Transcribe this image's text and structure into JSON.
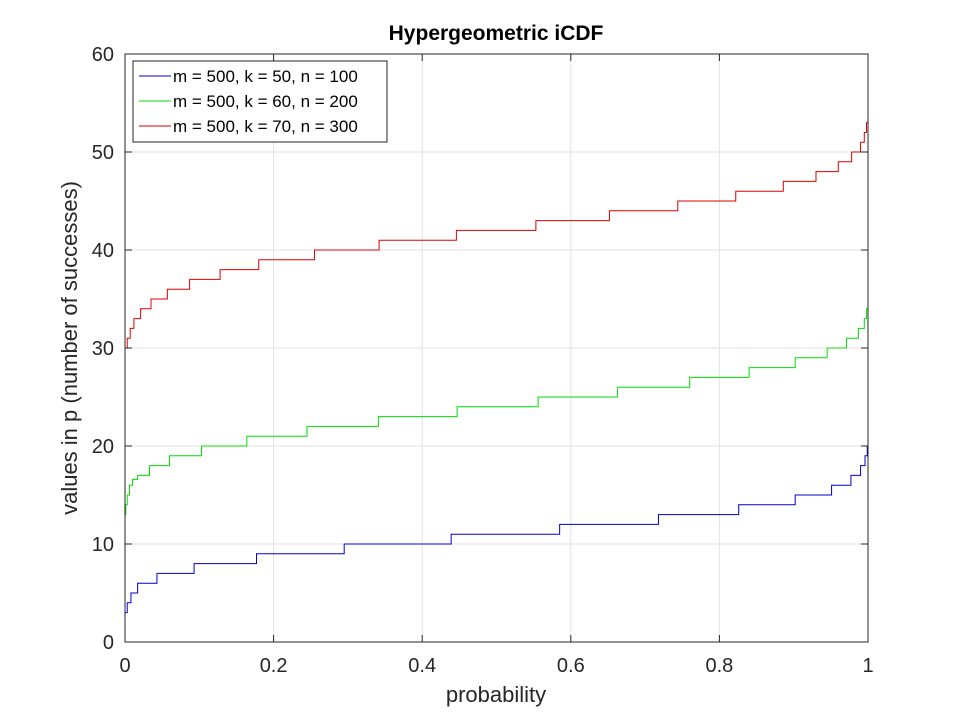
{
  "chart_data": {
    "type": "line",
    "title": "Hypergeometric iCDF",
    "xlabel": "probability",
    "ylabel": "values in p (number of successes)",
    "xlim": [
      0,
      1
    ],
    "ylim": [
      0,
      60
    ],
    "xticks": [
      0,
      0.2,
      0.4,
      0.6,
      0.8,
      1
    ],
    "xtick_labels": [
      "0",
      "0.2",
      "0.4",
      "0.6",
      "0.8",
      "1"
    ],
    "yticks": [
      0,
      10,
      20,
      30,
      40,
      50,
      60
    ],
    "ytick_labels": [
      "0",
      "10",
      "20",
      "30",
      "40",
      "50",
      "60"
    ],
    "grid": true,
    "legend_position": "top-left",
    "step": true,
    "series": [
      {
        "name": "m = 500, k = 50, n = 100",
        "color": "#0000cc",
        "x": [
          0,
          0.003,
          0.008,
          0.017,
          0.043,
          0.093,
          0.177,
          0.295,
          0.439,
          0.585,
          0.718,
          0.826,
          0.902,
          0.951,
          0.977,
          0.99,
          0.996,
          0.999,
          1.0
        ],
        "y": [
          3,
          4,
          5,
          6,
          7,
          8,
          9,
          10,
          11,
          12,
          13,
          14,
          15,
          16,
          17,
          18,
          19,
          20,
          20
        ]
      },
      {
        "name": "m = 500, k = 60, n = 200",
        "color": "#00dd00",
        "x": [
          0,
          0.001,
          0.003,
          0.006,
          0.01,
          0.017,
          0.033,
          0.06,
          0.103,
          0.164,
          0.245,
          0.341,
          0.447,
          0.556,
          0.663,
          0.76,
          0.84,
          0.902,
          0.945,
          0.971,
          0.987,
          0.995,
          0.998,
          1.0
        ],
        "y": [
          13,
          14,
          15,
          16,
          16.6,
          17,
          18,
          19,
          20,
          21,
          22,
          23,
          24,
          25,
          26,
          27,
          28,
          29,
          30,
          31,
          32,
          33,
          34,
          35
        ]
      },
      {
        "name": "m = 500, k = 70, n = 300",
        "color": "#dd0000",
        "x": [
          0,
          0.003,
          0.007,
          0.012,
          0.021,
          0.035,
          0.057,
          0.087,
          0.128,
          0.18,
          0.255,
          0.342,
          0.446,
          0.553,
          0.652,
          0.744,
          0.822,
          0.886,
          0.93,
          0.96,
          0.978,
          0.99,
          0.995,
          0.998,
          1.0
        ],
        "y": [
          30,
          31,
          32,
          33,
          34,
          35,
          36,
          37,
          38,
          39,
          40,
          41,
          42,
          43,
          44,
          45,
          46,
          47,
          48,
          49,
          50,
          51,
          52,
          53,
          53
        ]
      }
    ]
  }
}
